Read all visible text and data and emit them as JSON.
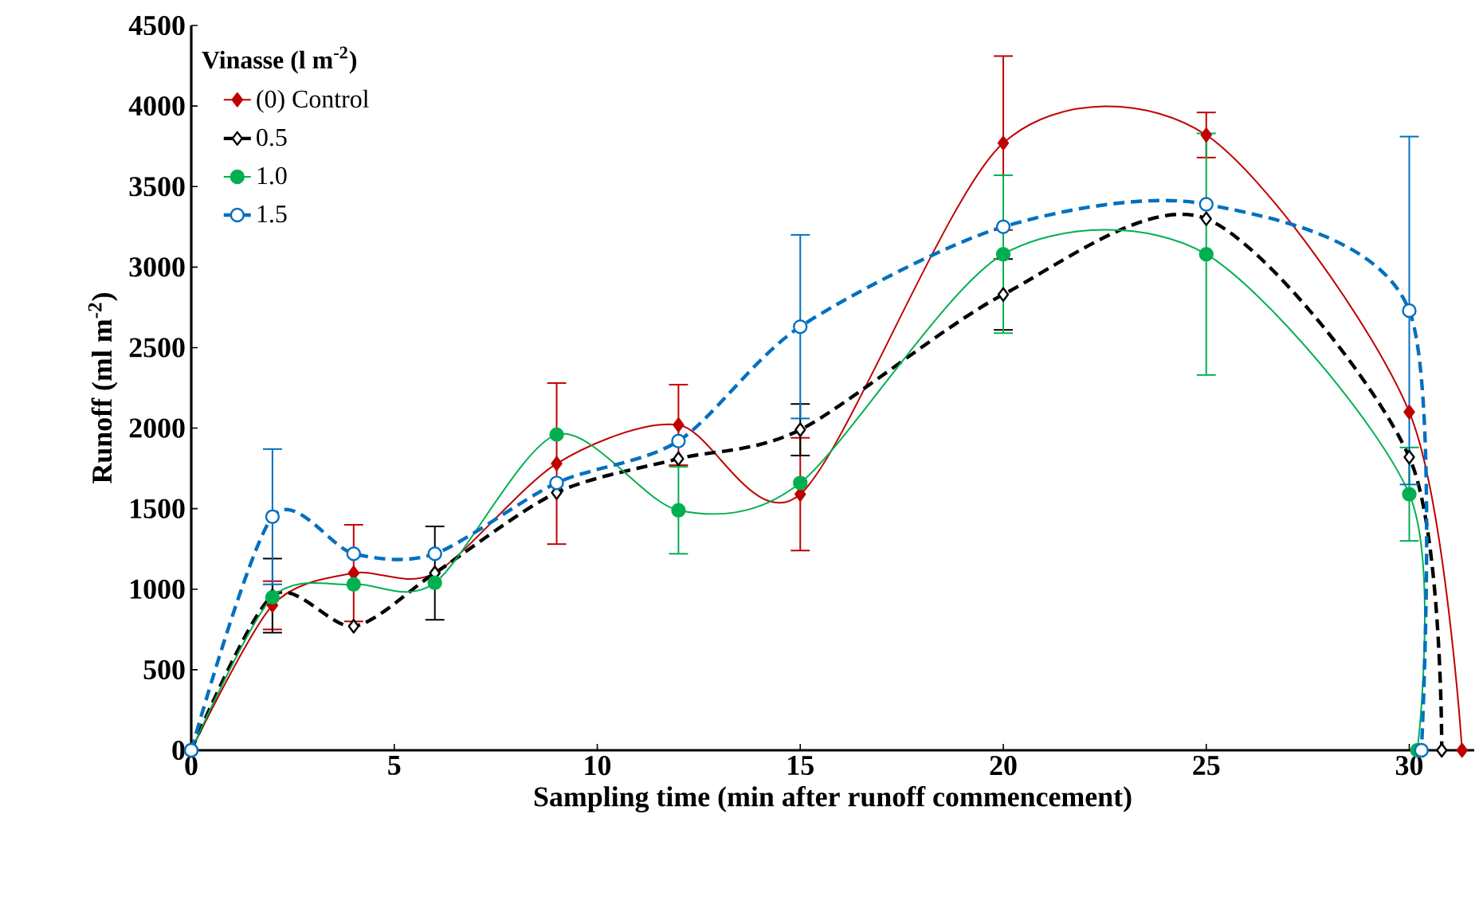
{
  "chart_data": {
    "type": "line",
    "xlabel": "Sampling time (min after runoff commencement)",
    "ylabel": "Runoff (ml m$^{-2}$)",
    "legend_title": "Vinasse (l m$^{-2}$)",
    "legend": "top left",
    "grid": false,
    "xlim": [
      0,
      31.6
    ],
    "xticks": [
      0,
      5,
      10,
      15,
      20,
      25,
      30
    ],
    "ylim": [
      0,
      4500
    ],
    "yticks": [
      0,
      500,
      1000,
      1500,
      2000,
      2500,
      3000,
      3500,
      4000,
      4500
    ],
    "series": [
      {
        "name": "(0) Control",
        "color": "#c00000",
        "marker": "diamond",
        "line_style": "solid",
        "x": [
          0,
          2,
          4,
          6,
          9,
          12,
          15,
          20,
          25,
          30,
          31.3
        ],
        "values": [
          0,
          900,
          1100,
          1100,
          1780,
          2020,
          1590,
          3770,
          3820,
          2100,
          0
        ],
        "errors": [
          null,
          150,
          300,
          null,
          500,
          250,
          350,
          540,
          140,
          null,
          null
        ]
      },
      {
        "name": "0.5",
        "color": "#000000",
        "marker": "diamond",
        "line_style": "dashed",
        "x": [
          0,
          2,
          4,
          6,
          9,
          12,
          15,
          20,
          25,
          30,
          30.8
        ],
        "values": [
          0,
          960,
          770,
          1100,
          1600,
          1810,
          1990,
          2830,
          3300,
          1820,
          0
        ],
        "errors": [
          null,
          230,
          null,
          290,
          null,
          null,
          160,
          220,
          null,
          null,
          null
        ]
      },
      {
        "name": "1.0",
        "color": "#00b050",
        "marker": "circle",
        "line_style": "solid",
        "x": [
          0,
          2,
          4,
          6,
          9,
          12,
          15,
          20,
          25,
          30,
          30.2
        ],
        "values": [
          0,
          950,
          1030,
          1040,
          1960,
          1490,
          1660,
          3080,
          3080,
          1590,
          0
        ],
        "errors": [
          null,
          null,
          null,
          null,
          null,
          270,
          null,
          490,
          750,
          290,
          null
        ]
      },
      {
        "name": "1.5",
        "color": "#0070c0",
        "marker": "circle",
        "line_style": "dashed",
        "x": [
          0,
          2,
          4,
          6,
          9,
          12,
          15,
          20,
          25,
          30,
          30.3
        ],
        "values": [
          0,
          1450,
          1220,
          1220,
          1660,
          1920,
          2630,
          3250,
          3390,
          2730,
          0
        ],
        "errors": [
          null,
          420,
          null,
          null,
          null,
          null,
          570,
          null,
          null,
          1080,
          null
        ]
      }
    ]
  }
}
